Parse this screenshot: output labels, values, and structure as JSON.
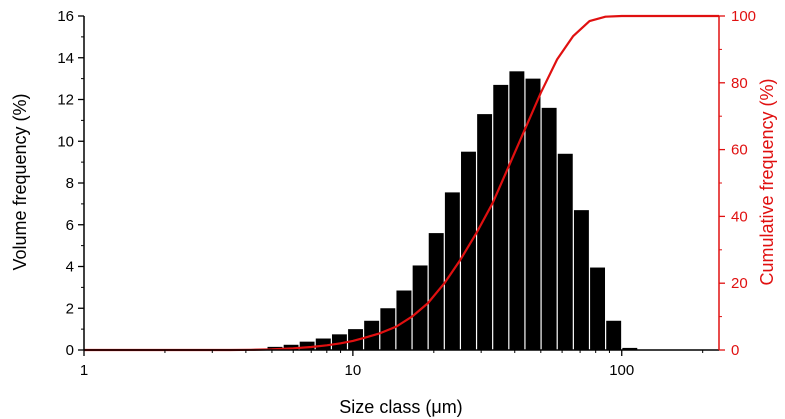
{
  "chart_data": {
    "type": "bar",
    "x_scale": "log",
    "xlim": [
      1,
      230
    ],
    "xlabel": "Size class (μm)",
    "x_ticks": [
      1,
      10,
      100
    ],
    "x_tick_labels": [
      "1",
      "10",
      "100"
    ],
    "ylabel": "Volume frequency (%)",
    "ylim": [
      0,
      16
    ],
    "y_ticks": [
      0,
      2,
      4,
      6,
      8,
      10,
      12,
      14,
      16
    ],
    "y2label": "Cumulative frequency (%)",
    "y2lim": [
      0,
      100
    ],
    "y2_ticks": [
      0,
      20,
      40,
      60,
      80,
      100
    ],
    "bar_color": "#000000",
    "line_color": "#e01010",
    "grid": false,
    "series": [
      {
        "kind": "bar",
        "axis": "left",
        "bins": [
          {
            "lower": 4.17,
            "upper": 4.79,
            "value": 0.05
          },
          {
            "lower": 4.79,
            "upper": 5.5,
            "value": 0.15
          },
          {
            "lower": 5.5,
            "upper": 6.31,
            "value": 0.25
          },
          {
            "lower": 6.31,
            "upper": 7.24,
            "value": 0.4
          },
          {
            "lower": 7.24,
            "upper": 8.32,
            "value": 0.55
          },
          {
            "lower": 8.32,
            "upper": 9.55,
            "value": 0.75
          },
          {
            "lower": 9.55,
            "upper": 10.96,
            "value": 1.0
          },
          {
            "lower": 10.96,
            "upper": 12.59,
            "value": 1.4
          },
          {
            "lower": 12.59,
            "upper": 14.45,
            "value": 2.0
          },
          {
            "lower": 14.45,
            "upper": 16.6,
            "value": 2.85
          },
          {
            "lower": 16.6,
            "upper": 19.05,
            "value": 4.05
          },
          {
            "lower": 19.05,
            "upper": 21.88,
            "value": 5.6
          },
          {
            "lower": 21.88,
            "upper": 25.12,
            "value": 7.55
          },
          {
            "lower": 25.12,
            "upper": 28.84,
            "value": 9.5
          },
          {
            "lower": 28.84,
            "upper": 33.11,
            "value": 11.3
          },
          {
            "lower": 33.11,
            "upper": 38.02,
            "value": 12.7
          },
          {
            "lower": 38.02,
            "upper": 43.65,
            "value": 13.35
          },
          {
            "lower": 43.65,
            "upper": 50.12,
            "value": 13.0
          },
          {
            "lower": 50.12,
            "upper": 57.54,
            "value": 11.6
          },
          {
            "lower": 57.54,
            "upper": 66.07,
            "value": 9.4
          },
          {
            "lower": 66.07,
            "upper": 75.86,
            "value": 6.7
          },
          {
            "lower": 75.86,
            "upper": 87.1,
            "value": 3.95
          },
          {
            "lower": 87.1,
            "upper": 100.0,
            "value": 1.4
          },
          {
            "lower": 100.0,
            "upper": 114.8,
            "value": 0.1
          }
        ]
      },
      {
        "kind": "line",
        "axis": "right",
        "points": [
          [
            1,
            0
          ],
          [
            3.5,
            0
          ],
          [
            4.2,
            0.05
          ],
          [
            5,
            0.2
          ],
          [
            6,
            0.5
          ],
          [
            7,
            0.9
          ],
          [
            8,
            1.4
          ],
          [
            9,
            2.0
          ],
          [
            10,
            2.7
          ],
          [
            11,
            3.6
          ],
          [
            12.6,
            5.0
          ],
          [
            14.5,
            7.0
          ],
          [
            16.6,
            10.0
          ],
          [
            19,
            14.0
          ],
          [
            21.9,
            20.0
          ],
          [
            25.1,
            27.0
          ],
          [
            28.8,
            35.0
          ],
          [
            33.1,
            44.0
          ],
          [
            38,
            55.0
          ],
          [
            43.6,
            66.0
          ],
          [
            50,
            77.0
          ],
          [
            57.5,
            87.0
          ],
          [
            66,
            94.0
          ],
          [
            75.9,
            98.5
          ],
          [
            87,
            99.8
          ],
          [
            100,
            100
          ],
          [
            230,
            100
          ]
        ]
      }
    ]
  }
}
